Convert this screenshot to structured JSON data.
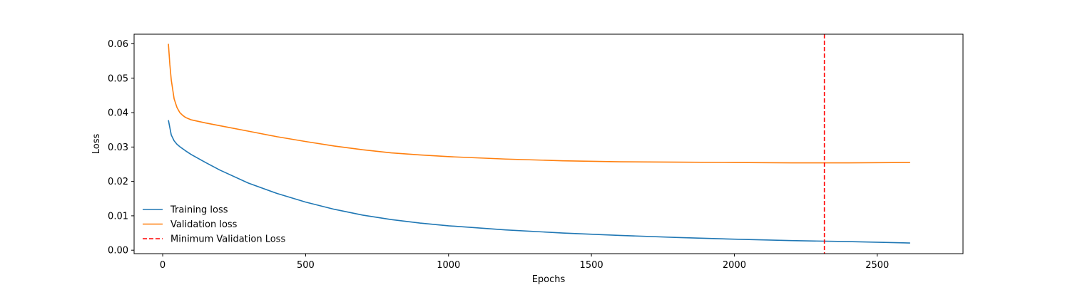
{
  "chart_data": {
    "type": "line",
    "title": "",
    "xlabel": "Epochs",
    "ylabel": "Loss",
    "xlim": [
      -100,
      2800
    ],
    "ylim": [
      -0.001,
      0.0628
    ],
    "xticks": [
      0,
      500,
      1000,
      1500,
      2000,
      2500
    ],
    "yticks": [
      0.0,
      0.01,
      0.02,
      0.03,
      0.04,
      0.05,
      0.06
    ],
    "ytick_labels": [
      "0.00",
      "0.01",
      "0.02",
      "0.03",
      "0.04",
      "0.05",
      "0.06"
    ],
    "grid": false,
    "legend_position": "lower-left",
    "series": [
      {
        "name": "Training loss",
        "color": "#1f77b4",
        "style": "solid",
        "x": [
          20,
          30,
          40,
          50,
          60,
          80,
          100,
          150,
          200,
          300,
          400,
          500,
          600,
          700,
          800,
          900,
          1000,
          1200,
          1400,
          1600,
          1800,
          2000,
          2200,
          2400,
          2615
        ],
        "y": [
          0.0378,
          0.0335,
          0.0318,
          0.0308,
          0.0301,
          0.0289,
          0.0278,
          0.0255,
          0.0233,
          0.0195,
          0.0165,
          0.014,
          0.0119,
          0.0102,
          0.0089,
          0.0079,
          0.0071,
          0.0059,
          0.005,
          0.0043,
          0.0037,
          0.0032,
          0.0028,
          0.0025,
          0.0021
        ]
      },
      {
        "name": "Validation loss",
        "color": "#ff7f0e",
        "style": "solid",
        "x": [
          20,
          25,
          30,
          40,
          50,
          60,
          70,
          80,
          100,
          150,
          200,
          300,
          400,
          500,
          600,
          700,
          800,
          900,
          1000,
          1200,
          1400,
          1600,
          1800,
          2000,
          2200,
          2315,
          2400,
          2615
        ],
        "y": [
          0.06,
          0.054,
          0.0495,
          0.044,
          0.0415,
          0.04,
          0.0392,
          0.0386,
          0.0379,
          0.037,
          0.0362,
          0.0346,
          0.033,
          0.0316,
          0.0303,
          0.0292,
          0.0283,
          0.0277,
          0.0272,
          0.0265,
          0.026,
          0.0257,
          0.0256,
          0.0255,
          0.0254,
          0.0254,
          0.0254,
          0.0255
        ]
      }
    ],
    "vlines": [
      {
        "name": "Minimum Validation Loss",
        "x": 2315,
        "color": "#ff0000",
        "style": "dashed"
      }
    ]
  }
}
